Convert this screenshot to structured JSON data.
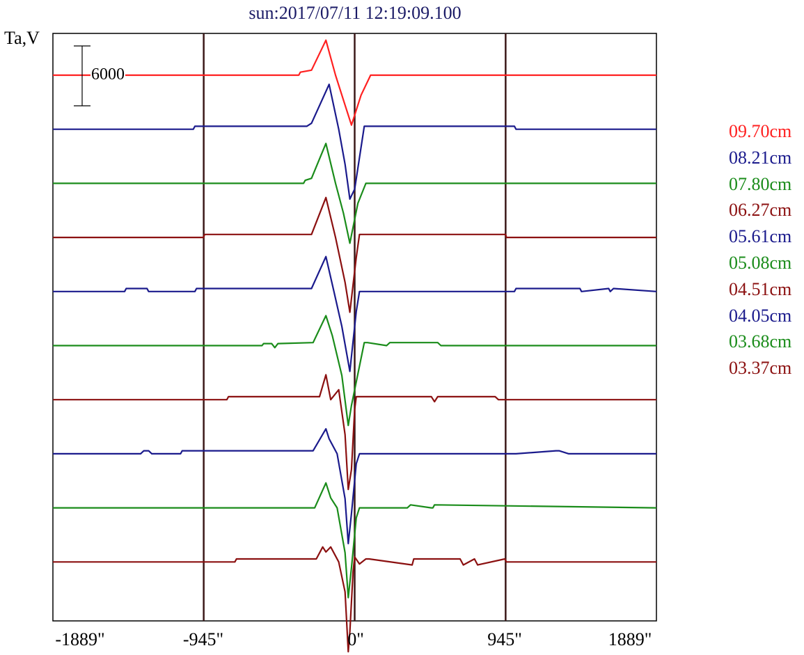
{
  "title": "sun:2017/07/11 12:19:09.100",
  "ylabel": "Ta,V",
  "scale_bar_label": "6000",
  "colors": {
    "red": "#ff2020",
    "blue": "#1a1a8c",
    "green": "#1a8c1a",
    "darkred": "#8b1010",
    "vline": "#3a1818",
    "frame": "#000000"
  },
  "chart_data": {
    "type": "line",
    "title": "sun:2017/07/11 12:19:09.100",
    "xlabel": "",
    "ylabel": "Ta,V",
    "xlim": [
      -1889,
      1889
    ],
    "x_ticks": [
      -1889,
      -945,
      0,
      945,
      1889
    ],
    "x_tick_labels": [
      "-1889\"",
      "-945\"",
      "0\"",
      "945\"",
      "1889\""
    ],
    "vertical_lines": [
      -945,
      0,
      945
    ],
    "scale_bar": 6000,
    "legend_position": "right",
    "grid": false,
    "series": [
      {
        "name": "09.70cm",
        "color": "#ff2020",
        "x": [
          -1889,
          -350,
          -340,
          -270,
          -180,
          -120,
          -70,
          -20,
          40,
          100,
          1889
        ],
        "y": [
          0,
          0,
          300,
          500,
          3500,
          0,
          -2500,
          -5000,
          -2000,
          0,
          0
        ]
      },
      {
        "name": "08.21cm",
        "color": "#1a1a8c",
        "x": [
          -1889,
          -1010,
          -1000,
          -300,
          -270,
          -160,
          -100,
          -60,
          -30,
          0,
          60,
          1000,
          1010,
          1889
        ],
        "y": [
          0,
          0,
          300,
          300,
          600,
          4500,
          0,
          -3500,
          -7000,
          -6000,
          300,
          300,
          0,
          0
        ]
      },
      {
        "name": "07.80cm",
        "color": "#1a8c1a",
        "x": [
          -1889,
          -320,
          -310,
          -270,
          -180,
          -120,
          -70,
          -30,
          20,
          70,
          1889
        ],
        "y": [
          0,
          0,
          300,
          500,
          4000,
          0,
          -3000,
          -6000,
          -2000,
          0,
          0
        ]
      },
      {
        "name": "06.27cm",
        "color": "#8b1010",
        "x": [
          -1889,
          -945,
          -940,
          -270,
          -180,
          -120,
          -60,
          -30,
          10,
          30,
          945,
          950,
          1889
        ],
        "y": [
          0,
          0,
          300,
          300,
          4000,
          0,
          -4500,
          -7500,
          -2000,
          300,
          300,
          0,
          0
        ]
      },
      {
        "name": "05.61cm",
        "color": "#1a1a8c",
        "x": [
          -1889,
          -1440,
          -1430,
          -1300,
          -1290,
          -1000,
          -990,
          -270,
          -180,
          -130,
          -80,
          -30,
          10,
          30,
          1000,
          1010,
          1410,
          1420,
          1590,
          1600,
          1620,
          1889
        ],
        "y": [
          0,
          0,
          300,
          300,
          0,
          0,
          300,
          300,
          3500,
          0,
          -3500,
          -8000,
          -2000,
          0,
          0,
          300,
          300,
          0,
          300,
          0,
          300,
          0
        ]
      },
      {
        "name": "05.08cm",
        "color": "#1a8c1a",
        "x": [
          -1889,
          -580,
          -570,
          -520,
          -500,
          -480,
          -260,
          -180,
          -140,
          -80,
          -40,
          -20,
          60,
          80,
          200,
          220,
          520,
          540,
          1889
        ],
        "y": [
          0,
          0,
          200,
          200,
          -200,
          200,
          300,
          3000,
          1000,
          -3000,
          -8000,
          -6000,
          300,
          300,
          0,
          300,
          300,
          0,
          0
        ]
      },
      {
        "name": "04.51cm",
        "color": "#8b1010",
        "x": [
          -1889,
          -800,
          -790,
          -220,
          -180,
          -150,
          -100,
          -60,
          -40,
          -20,
          0,
          10,
          40,
          480,
          500,
          520,
          880,
          900,
          1889
        ],
        "y": [
          0,
          0,
          300,
          300,
          2500,
          0,
          1000,
          -3500,
          -9000,
          -7000,
          -1000,
          300,
          300,
          300,
          -200,
          300,
          300,
          0,
          0
        ]
      },
      {
        "name": "04.05cm",
        "color": "#1a1a8c",
        "x": [
          -1889,
          -1340,
          -1320,
          -1290,
          -1270,
          -1090,
          -1080,
          -260,
          -180,
          -160,
          -110,
          -60,
          -40,
          -20,
          10,
          30,
          1000,
          1010,
          1260,
          1280,
          1340,
          1350,
          1889
        ],
        "y": [
          0,
          0,
          300,
          300,
          0,
          0,
          300,
          300,
          2500,
          1500,
          0,
          -4500,
          -9000,
          -6000,
          -1000,
          0,
          0,
          0,
          300,
          300,
          0,
          0,
          0
        ]
      },
      {
        "name": "03.68cm",
        "color": "#1a8c1a",
        "x": [
          -1889,
          -250,
          -180,
          -150,
          -110,
          -60,
          -40,
          -20,
          10,
          30,
          330,
          350,
          480,
          490,
          500,
          1889
        ],
        "y": [
          0,
          0,
          2500,
          1000,
          0,
          -4500,
          -9000,
          -6000,
          -1000,
          0,
          0,
          300,
          0,
          0,
          300,
          0
        ]
      },
      {
        "name": "03.37cm",
        "color": "#8b1010",
        "x": [
          -1889,
          -750,
          -740,
          -240,
          -200,
          -180,
          -150,
          -100,
          -60,
          -40,
          -30,
          -10,
          0,
          30,
          70,
          90,
          360,
          370,
          660,
          680,
          750,
          770,
          940,
          950,
          1889
        ],
        "y": [
          0,
          0,
          300,
          300,
          1500,
          1000,
          1500,
          0,
          -3000,
          -9000,
          -7000,
          -1000,
          500,
          -200,
          300,
          300,
          -300,
          300,
          300,
          -300,
          300,
          -300,
          300,
          0,
          0
        ]
      }
    ]
  },
  "legend": [
    "09.70cm",
    "08.21cm",
    "07.80cm",
    "06.27cm",
    "05.61cm",
    "05.08cm",
    "04.51cm",
    "04.05cm",
    "03.68cm",
    "03.37cm"
  ]
}
